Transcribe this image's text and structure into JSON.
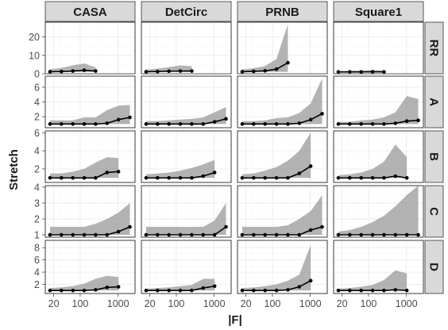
{
  "chart_data": {
    "type": "area",
    "xlabel": "|F|",
    "ylabel": "Stretch",
    "x_scale": "log",
    "x_ticks": [
      20,
      100,
      1000
    ],
    "columns": [
      "CASA",
      "DetCirc",
      "PRNB",
      "Square1"
    ],
    "rows": [
      {
        "name": "RR",
        "yticks": [
          0,
          10,
          20
        ],
        "ylim": [
          0,
          28
        ]
      },
      {
        "name": "A",
        "yticks": [
          2,
          4,
          6
        ],
        "ylim": [
          0.5,
          7.5
        ]
      },
      {
        "name": "B",
        "yticks": [
          2,
          4,
          6
        ],
        "ylim": [
          0.5,
          6.2
        ]
      },
      {
        "name": "C",
        "yticks": [
          1,
          2,
          3,
          4
        ],
        "ylim": [
          0.85,
          4.1
        ]
      },
      {
        "name": "D",
        "yticks": [
          2,
          4,
          6,
          8
        ],
        "ylim": [
          0.5,
          9.2
        ]
      }
    ],
    "panels": {
      "RR": {
        "CASA": {
          "x": [
            16,
            32,
            64,
            128,
            256
          ],
          "median": [
            1.1,
            1.2,
            1.5,
            1.9,
            1.5
          ],
          "lower": [
            1,
            1,
            1,
            1,
            1
          ],
          "upper": [
            2.5,
            3.2,
            4.6,
            5.6,
            3.5
          ]
        },
        "DetCirc": {
          "x": [
            16,
            32,
            64,
            128,
            256
          ],
          "median": [
            1.1,
            1.2,
            1.4,
            1.5,
            1.5
          ],
          "lower": [
            1,
            1,
            1,
            1,
            1
          ],
          "upper": [
            2.2,
            2.8,
            3.6,
            4.6,
            4.1
          ]
        },
        "PRNB": {
          "x": [
            16,
            32,
            64,
            128,
            256
          ],
          "median": [
            1.1,
            1.3,
            1.6,
            2.5,
            6.0
          ],
          "lower": [
            1,
            1,
            1,
            1,
            1
          ],
          "upper": [
            2.4,
            3.0,
            4.2,
            8.0,
            27.0
          ]
        },
        "Square1": {
          "x": [
            16,
            32,
            64,
            128,
            256
          ],
          "median": [
            1.0,
            1.0,
            1.0,
            1.1,
            1.0
          ],
          "lower": [
            1,
            1,
            1,
            1,
            1
          ],
          "upper": [
            1.4,
            1.6,
            1.8,
            1.9,
            1.9
          ]
        }
      },
      "A": {
        "CASA": {
          "x": [
            16,
            32,
            64,
            128,
            256,
            512,
            1024,
            2048
          ],
          "median": [
            1,
            1,
            1,
            1,
            1,
            1.1,
            1.6,
            1.9
          ],
          "lower": [
            1,
            1,
            1,
            1,
            1,
            1,
            1,
            1
          ],
          "upper": [
            1.5,
            1.5,
            1.5,
            1.9,
            1.9,
            2.9,
            3.5,
            3.6
          ]
        },
        "DetCirc": {
          "x": [
            16,
            32,
            64,
            128,
            256,
            512,
            1024,
            2048
          ],
          "median": [
            1,
            1,
            1,
            1,
            1,
            1,
            1.3,
            1.7
          ],
          "lower": [
            1,
            1,
            1,
            1,
            1,
            1,
            1,
            1
          ],
          "upper": [
            1.4,
            1.4,
            1.5,
            1.6,
            1.7,
            1.9,
            2.6,
            3.3
          ]
        },
        "PRNB": {
          "x": [
            16,
            32,
            64,
            128,
            256,
            512,
            1024,
            2048
          ],
          "median": [
            1,
            1,
            1,
            1,
            1,
            1.1,
            1.6,
            2.4
          ],
          "lower": [
            1,
            1,
            1,
            1,
            1,
            1,
            1,
            1
          ],
          "upper": [
            1.4,
            1.4,
            1.5,
            1.8,
            1.9,
            2.5,
            3.8,
            7.2
          ]
        },
        "Square1": {
          "x": [
            16,
            32,
            64,
            128,
            256,
            512,
            1024,
            2048
          ],
          "median": [
            1,
            1,
            1,
            1,
            1,
            1.1,
            1.4,
            1.5
          ],
          "lower": [
            1,
            1,
            1,
            1,
            1,
            1,
            1,
            1
          ],
          "upper": [
            1.3,
            1.3,
            1.5,
            1.6,
            1.9,
            2.6,
            4.8,
            4.4
          ]
        }
      },
      "B": {
        "CASA": {
          "x": [
            16,
            32,
            64,
            128,
            256,
            512,
            1024
          ],
          "median": [
            1,
            1,
            1,
            1,
            1,
            1.6,
            1.7
          ],
          "lower": [
            1,
            1,
            1,
            1,
            1,
            1,
            1
          ],
          "upper": [
            1.5,
            1.5,
            1.7,
            2.0,
            2.7,
            3.3,
            3.2
          ]
        },
        "DetCirc": {
          "x": [
            16,
            32,
            64,
            128,
            256,
            512,
            1024
          ],
          "median": [
            1,
            1,
            1,
            1,
            1,
            1.2,
            1.6
          ],
          "lower": [
            1,
            1,
            1,
            1,
            1,
            1,
            1
          ],
          "upper": [
            1.4,
            1.5,
            1.6,
            1.8,
            2.1,
            2.5,
            3.0
          ]
        },
        "PRNB": {
          "x": [
            16,
            32,
            64,
            128,
            256,
            512,
            1024
          ],
          "median": [
            1,
            1,
            1,
            1,
            1,
            1.5,
            2.3
          ],
          "lower": [
            1,
            1,
            1,
            1,
            1,
            1,
            1
          ],
          "upper": [
            1.4,
            1.5,
            1.8,
            2.2,
            2.9,
            4.0,
            6.0
          ]
        },
        "Square1": {
          "x": [
            16,
            32,
            64,
            128,
            256,
            512,
            1024
          ],
          "median": [
            1,
            1,
            1,
            1,
            1,
            1.2,
            1.0
          ],
          "lower": [
            1,
            1,
            1,
            1,
            1,
            1,
            1
          ],
          "upper": [
            1.3,
            1.4,
            1.6,
            2.0,
            2.8,
            4.7,
            3.3
          ]
        }
      },
      "C": {
        "CASA": {
          "x": [
            16,
            32,
            64,
            128,
            256,
            512,
            1024,
            2048
          ],
          "median": [
            1,
            1,
            1,
            1,
            1,
            1,
            1.2,
            1.5
          ],
          "lower": [
            1,
            1,
            1,
            1,
            1,
            1,
            1,
            1
          ],
          "upper": [
            1.5,
            1.5,
            1.5,
            1.5,
            1.7,
            2.0,
            2.4,
            3.0
          ]
        },
        "DetCirc": {
          "x": [
            16,
            32,
            64,
            128,
            256,
            512,
            1024,
            2048
          ],
          "median": [
            1,
            1,
            1,
            1,
            1,
            1,
            1,
            1.5
          ],
          "lower": [
            1,
            1,
            1,
            1,
            1,
            1,
            1,
            1
          ],
          "upper": [
            1.5,
            1.5,
            1.5,
            1.5,
            1.5,
            1.5,
            1.9,
            3.0
          ]
        },
        "PRNB": {
          "x": [
            16,
            32,
            64,
            128,
            256,
            512,
            1024,
            2048
          ],
          "median": [
            1,
            1,
            1,
            1,
            1,
            1,
            1.3,
            1.5
          ],
          "lower": [
            1,
            1,
            1,
            1,
            1,
            1,
            1,
            1
          ],
          "upper": [
            1.5,
            1.5,
            1.5,
            1.5,
            1.6,
            2.0,
            2.5,
            3.5
          ]
        },
        "Square1": {
          "x": [
            16,
            32,
            64,
            128,
            256,
            512,
            1024,
            2048
          ],
          "median": [
            1,
            1,
            1,
            1,
            1,
            1,
            1,
            1
          ],
          "lower": [
            1,
            1,
            1,
            1,
            1,
            1,
            1,
            1
          ],
          "upper": [
            1.2,
            1.3,
            1.5,
            1.8,
            2.2,
            2.8,
            3.5,
            4.1
          ]
        }
      },
      "D": {
        "CASA": {
          "x": [
            16,
            32,
            64,
            128,
            256,
            512,
            1024
          ],
          "median": [
            1,
            1,
            1,
            1,
            1.1,
            1.5,
            1.6
          ],
          "lower": [
            1,
            1,
            1,
            1,
            1,
            1,
            1
          ],
          "upper": [
            1.4,
            1.5,
            1.7,
            2.1,
            2.9,
            3.4,
            3.2
          ]
        },
        "DetCirc": {
          "x": [
            16,
            32,
            64,
            128,
            256,
            512,
            1024
          ],
          "median": [
            1,
            1,
            1,
            1,
            1,
            1.4,
            1.7
          ],
          "lower": [
            1,
            1,
            1,
            1,
            1,
            1,
            1
          ],
          "upper": [
            1.3,
            1.4,
            1.5,
            1.7,
            1.9,
            2.9,
            2.9
          ]
        },
        "PRNB": {
          "x": [
            16,
            32,
            64,
            128,
            256,
            512,
            1024
          ],
          "median": [
            1,
            1,
            1,
            1,
            1.1,
            1.6,
            2.6
          ],
          "lower": [
            1,
            1,
            1,
            1,
            1,
            1,
            1
          ],
          "upper": [
            1.4,
            1.5,
            1.7,
            2.0,
            2.6,
            3.6,
            8.4
          ]
        },
        "Square1": {
          "x": [
            16,
            32,
            64,
            128,
            256,
            512,
            1024
          ],
          "median": [
            1,
            1,
            1,
            1,
            1,
            1.1,
            1.0
          ],
          "lower": [
            1,
            1,
            1,
            1,
            1,
            1,
            1
          ],
          "upper": [
            1.3,
            1.4,
            1.6,
            1.9,
            2.7,
            4.3,
            3.8
          ]
        }
      }
    }
  }
}
